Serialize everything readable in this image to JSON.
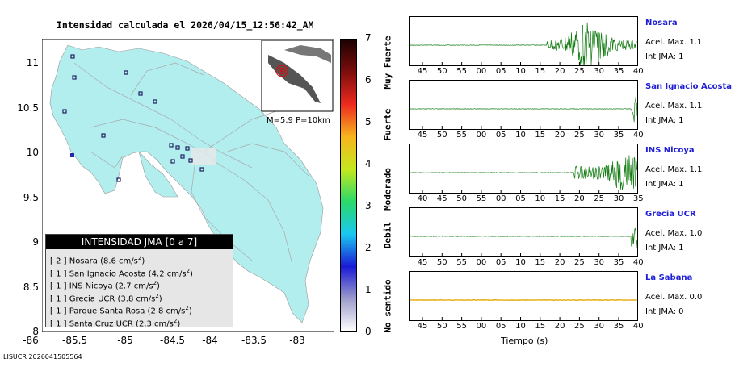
{
  "map": {
    "title": "Intensidad calculada el 2026/04/15_12:56:42_AM",
    "x_ticks": [
      "-86",
      "-85.5",
      "-85",
      "-84.5",
      "-84",
      "-83.5",
      "-83"
    ],
    "y_ticks": [
      "11",
      "10.5",
      "10",
      "9.5",
      "9",
      "8.5",
      "8"
    ],
    "inset_label": "M=5.9 P=10km",
    "footer": "LISUCR 2026041505564"
  },
  "colorbar": {
    "ticks": [
      "7",
      "6",
      "5",
      "4",
      "3",
      "2",
      "1",
      "0"
    ],
    "categories": [
      "Muy Fuerte",
      "Fuerte",
      "Moderado",
      "Debil",
      "No sentido"
    ],
    "colors": [
      "#ffffff",
      "#9d9dcc",
      "#1a1ad6",
      "#1ac8f0",
      "#2ad96a",
      "#c4e81e",
      "#f7b51e",
      "#ee2a1e",
      "#7d0d0d",
      "#1b0202"
    ]
  },
  "legend": {
    "header": "INTENSIDAD JMA [0 a 7]",
    "rows": [
      {
        "level": "[ 2 ]",
        "station": "Nosara",
        "accel": "(8.6 cm/s",
        "sup": "2",
        "close": ")"
      },
      {
        "level": "[ 1 ]",
        "station": "San Ignacio Acosta",
        "accel": "(4.2 cm/s",
        "sup": "2",
        "close": ")"
      },
      {
        "level": "[ 1 ]",
        "station": "INS Nicoya",
        "accel": "(2.7 cm/s",
        "sup": "2",
        "close": ")"
      },
      {
        "level": "[ 1 ]",
        "station": "Grecia UCR",
        "accel": "(3.8 cm/s",
        "sup": "2",
        "close": ")"
      },
      {
        "level": "[ 1 ]",
        "station": "Parque Santa Rosa",
        "accel": "(2.8 cm/s",
        "sup": "2",
        "close": ")"
      },
      {
        "level": "[ 1 ]",
        "station": "Santa Cruz UCR",
        "accel": "(2.3 cm/s",
        "sup": "2",
        "close": ")"
      }
    ]
  },
  "waveforms": {
    "xlabel": "Tiempo (s)",
    "colors": {
      "trace": "#0f7a0f",
      "trace_last": "#e3a600"
    },
    "stations": [
      {
        "name": "Nosara",
        "accel": "Acel. Max. 1.1",
        "jma": "Int JMA: 1",
        "ticks": [
          "45",
          "50",
          "55",
          "00",
          "05",
          "10",
          "15",
          "20",
          "25",
          "30",
          "35",
          "40"
        ],
        "onset": 0.6
      },
      {
        "name": "San Ignacio Acosta",
        "accel": "Acel. Max. 1.1",
        "jma": "Int JMA: 1",
        "ticks": [
          "45",
          "50",
          "55",
          "00",
          "05",
          "10",
          "15",
          "20",
          "25",
          "30",
          "35",
          "40"
        ],
        "onset": 0.97
      },
      {
        "name": "INS Nicoya",
        "accel": "Acel. Max. 1.1",
        "jma": "Int JMA: 1",
        "ticks": [
          "40",
          "45",
          "50",
          "55",
          "00",
          "05",
          "10",
          "15",
          "20",
          "25",
          "30",
          "35"
        ],
        "onset": 0.72
      },
      {
        "name": "Grecia UCR",
        "accel": "Acel. Max. 1.0",
        "jma": "Int JMA: 1",
        "ticks": [
          "45",
          "50",
          "55",
          "00",
          "05",
          "10",
          "15",
          "20",
          "25",
          "30",
          "35",
          "40"
        ],
        "onset": 0.97
      },
      {
        "name": "La Sabana",
        "accel": "Acel. Max. 0.0",
        "jma": "Int JMA: 0",
        "ticks": [
          "45",
          "50",
          "55",
          "00",
          "05",
          "10",
          "15",
          "20",
          "25",
          "30",
          "35",
          "40"
        ],
        "onset": 2
      }
    ]
  }
}
